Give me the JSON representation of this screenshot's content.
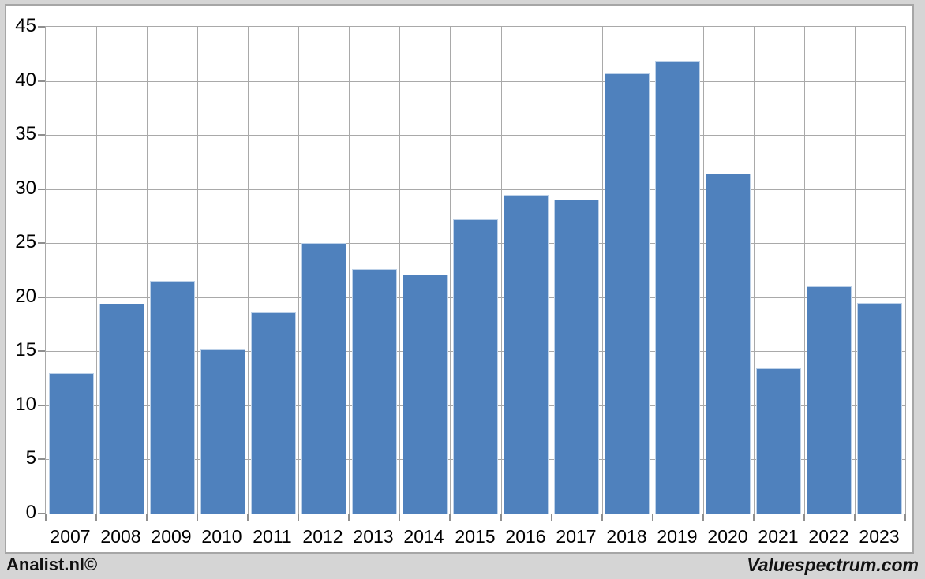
{
  "branding": {
    "left": "Analist.nl©",
    "right": "Valuespectrum.com"
  },
  "chart_data": {
    "type": "bar",
    "title": "",
    "xlabel": "",
    "ylabel": "",
    "categories": [
      "2007",
      "2008",
      "2009",
      "2010",
      "2011",
      "2012",
      "2013",
      "2014",
      "2015",
      "2016",
      "2017",
      "2018",
      "2019",
      "2020",
      "2021",
      "2022",
      "2023"
    ],
    "values": [
      13.0,
      19.4,
      21.5,
      15.2,
      18.6,
      25.0,
      22.6,
      22.1,
      27.2,
      29.5,
      29.0,
      40.7,
      41.9,
      31.4,
      13.4,
      21.0,
      19.5
    ],
    "ylim": [
      0,
      45
    ],
    "ytick_step": 5,
    "grid": true,
    "legend": false,
    "colors": {
      "bar_fill": "#4f81bd",
      "bar_edge": "#bdd1e8",
      "gridline": "#a9a9a9",
      "tick": "#8f8f8f",
      "axis_text": "#000000",
      "page_background": "#d5d5d5",
      "plot_background": "#ffffff",
      "frame_border": "#a6a6a6"
    }
  }
}
